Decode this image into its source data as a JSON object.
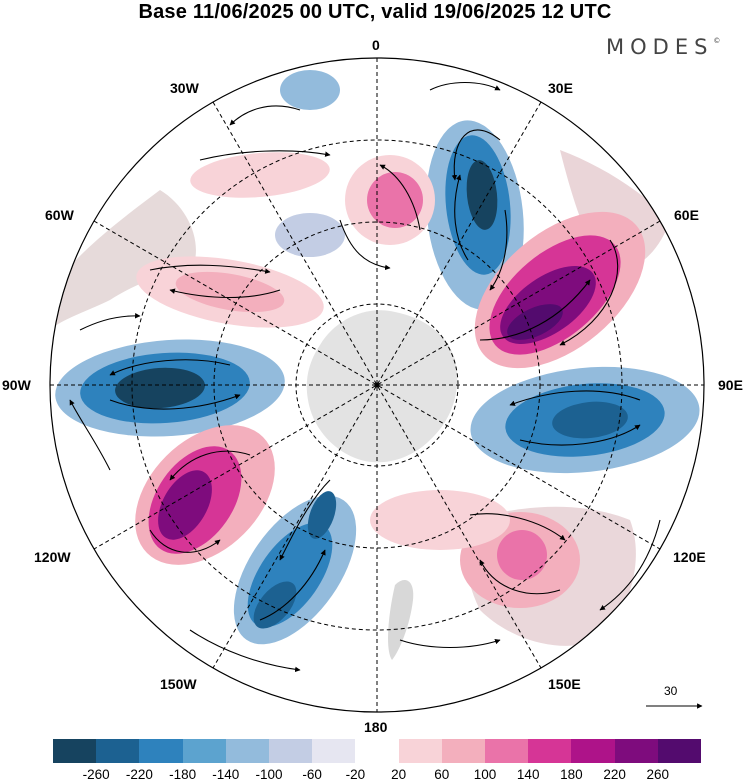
{
  "header": {
    "title": "Base 11/06/2025 00 UTC, valid 19/06/2025 12 UTC"
  },
  "logo": {
    "text": "MODES",
    "mark": "©"
  },
  "map": {
    "projection": "south-polar-stereographic",
    "longitude_labels": {
      "top": "0",
      "top_left": "30W",
      "top_right": "30E",
      "left_upper": "60W",
      "right_upper": "60E",
      "left": "90W",
      "right": "90E",
      "left_lower": "120W",
      "right_lower": "120E",
      "bottom_left": "150W",
      "bottom_right": "150E",
      "bottom": "180"
    },
    "reference_vector": {
      "label": "30"
    }
  },
  "colorbar": {
    "colors": [
      "#16435f",
      "#1c6191",
      "#2e82bd",
      "#5ca3cf",
      "#93bbdc",
      "#c3cde4",
      "#e6e6f1",
      "#ffffff",
      "#f8d3d8",
      "#f3afbd",
      "#ea73a9",
      "#d63596",
      "#ae1389",
      "#7e0c7d",
      "#530b6e"
    ],
    "tick_labels": [
      "-260",
      "-220",
      "-180",
      "-140",
      "-100",
      "-60",
      "-20",
      "20",
      "60",
      "100",
      "140",
      "180",
      "220",
      "260"
    ]
  }
}
